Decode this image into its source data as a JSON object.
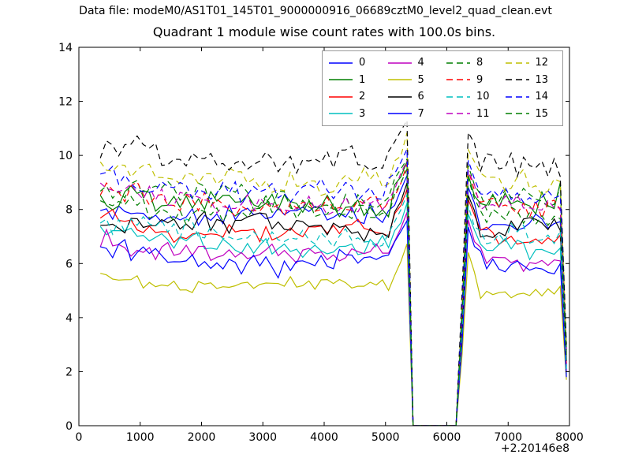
{
  "figure": {
    "data_file_label": "Data file: modeM0/AS1T01_145T01_9000000916_06689cztM0_level2_quad_clean.evt",
    "background": "#ffffff"
  },
  "chart_data": {
    "type": "line",
    "title": "Quadrant 1 module wise count rates with 100.0s bins.",
    "xlabel": "",
    "ylabel": "",
    "xlim": [
      0,
      8000
    ],
    "ylim": [
      0,
      14
    ],
    "x_ticks": [
      0,
      1000,
      2000,
      3000,
      4000,
      5000,
      6000,
      7000,
      8000
    ],
    "y_ticks": [
      0,
      2,
      4,
      6,
      8,
      10,
      12,
      14
    ],
    "x_offset_label": "+2.20146e8",
    "grid": false,
    "bin_seconds": 100,
    "x_start": 350,
    "x_end": 7950,
    "gap": {
      "zero_from": 5450,
      "zero_to": 6150
    },
    "spikes": [
      {
        "x": 5350,
        "peak_max": 11.3,
        "rise_above_base": 1.35
      },
      {
        "x": 6350,
        "peak_max": 10.85,
        "rise_above_base": 0.95
      }
    ],
    "end_drop": {
      "x": 7950,
      "note": "all series plunge to ~1.6-3.0 at right edge"
    },
    "legend": {
      "columns": 4,
      "position": "top-center",
      "fill_order": "column-major"
    },
    "series": [
      {
        "name": "0",
        "color": "#0000ff",
        "style": "solid",
        "base": 7.85,
        "amp": 0.26,
        "seed": 3,
        "end": 2.2
      },
      {
        "name": "1",
        "color": "#007f00",
        "style": "solid",
        "base": 8.3,
        "amp": 0.3,
        "seed": 5,
        "end": 2.8,
        "bump_end": 9.0
      },
      {
        "name": "2",
        "color": "#ff0000",
        "style": "solid",
        "base": 7.3,
        "amp": 0.3,
        "seed": 8,
        "end": 2.3
      },
      {
        "name": "3",
        "color": "#00bfbf",
        "style": "solid",
        "base": 6.8,
        "amp": 0.26,
        "seed": 13,
        "end": 1.9
      },
      {
        "name": "4",
        "color": "#bf00bf",
        "style": "solid",
        "base": 6.5,
        "amp": 0.26,
        "seed": 21,
        "end": 2.0
      },
      {
        "name": "5",
        "color": "#bfbf00",
        "style": "solid",
        "base": 5.3,
        "amp": 0.22,
        "seed": 34,
        "end": 1.7
      },
      {
        "name": "6",
        "color": "#000000",
        "style": "solid",
        "base": 7.45,
        "amp": 0.28,
        "seed": 55,
        "end": 2.4
      },
      {
        "name": "7",
        "color": "#0000ff",
        "style": "solid",
        "base": 6.2,
        "amp": 0.3,
        "seed": 89,
        "end": 1.8
      },
      {
        "name": "8",
        "color": "#007f00",
        "style": "dashed",
        "base": 8.5,
        "amp": 0.32,
        "seed": 144,
        "end": 2.9
      },
      {
        "name": "9",
        "color": "#ff0000",
        "style": "dashed",
        "base": 8.3,
        "amp": 0.32,
        "seed": 233,
        "end": 2.6
      },
      {
        "name": "10",
        "color": "#00bfbf",
        "style": "dashed",
        "base": 7.15,
        "amp": 0.3,
        "seed": 377,
        "end": 2.1
      },
      {
        "name": "11",
        "color": "#bf00bf",
        "style": "dashed",
        "base": 8.4,
        "amp": 0.3,
        "seed": 610,
        "end": 2.7
      },
      {
        "name": "12",
        "color": "#bfbf00",
        "style": "dashed",
        "base": 9.25,
        "amp": 0.32,
        "seed": 987,
        "end": 2.9
      },
      {
        "name": "13",
        "color": "#000000",
        "style": "dashed",
        "base": 9.95,
        "amp": 0.34,
        "seed": 1597,
        "end": 3.0
      },
      {
        "name": "14",
        "color": "#0000ff",
        "style": "dashed",
        "base": 8.8,
        "amp": 0.3,
        "seed": 2584,
        "end": 2.5
      },
      {
        "name": "15",
        "color": "#007f00",
        "style": "dashed",
        "base": 8.1,
        "amp": 0.32,
        "seed": 4181,
        "end": 2.6
      }
    ]
  }
}
